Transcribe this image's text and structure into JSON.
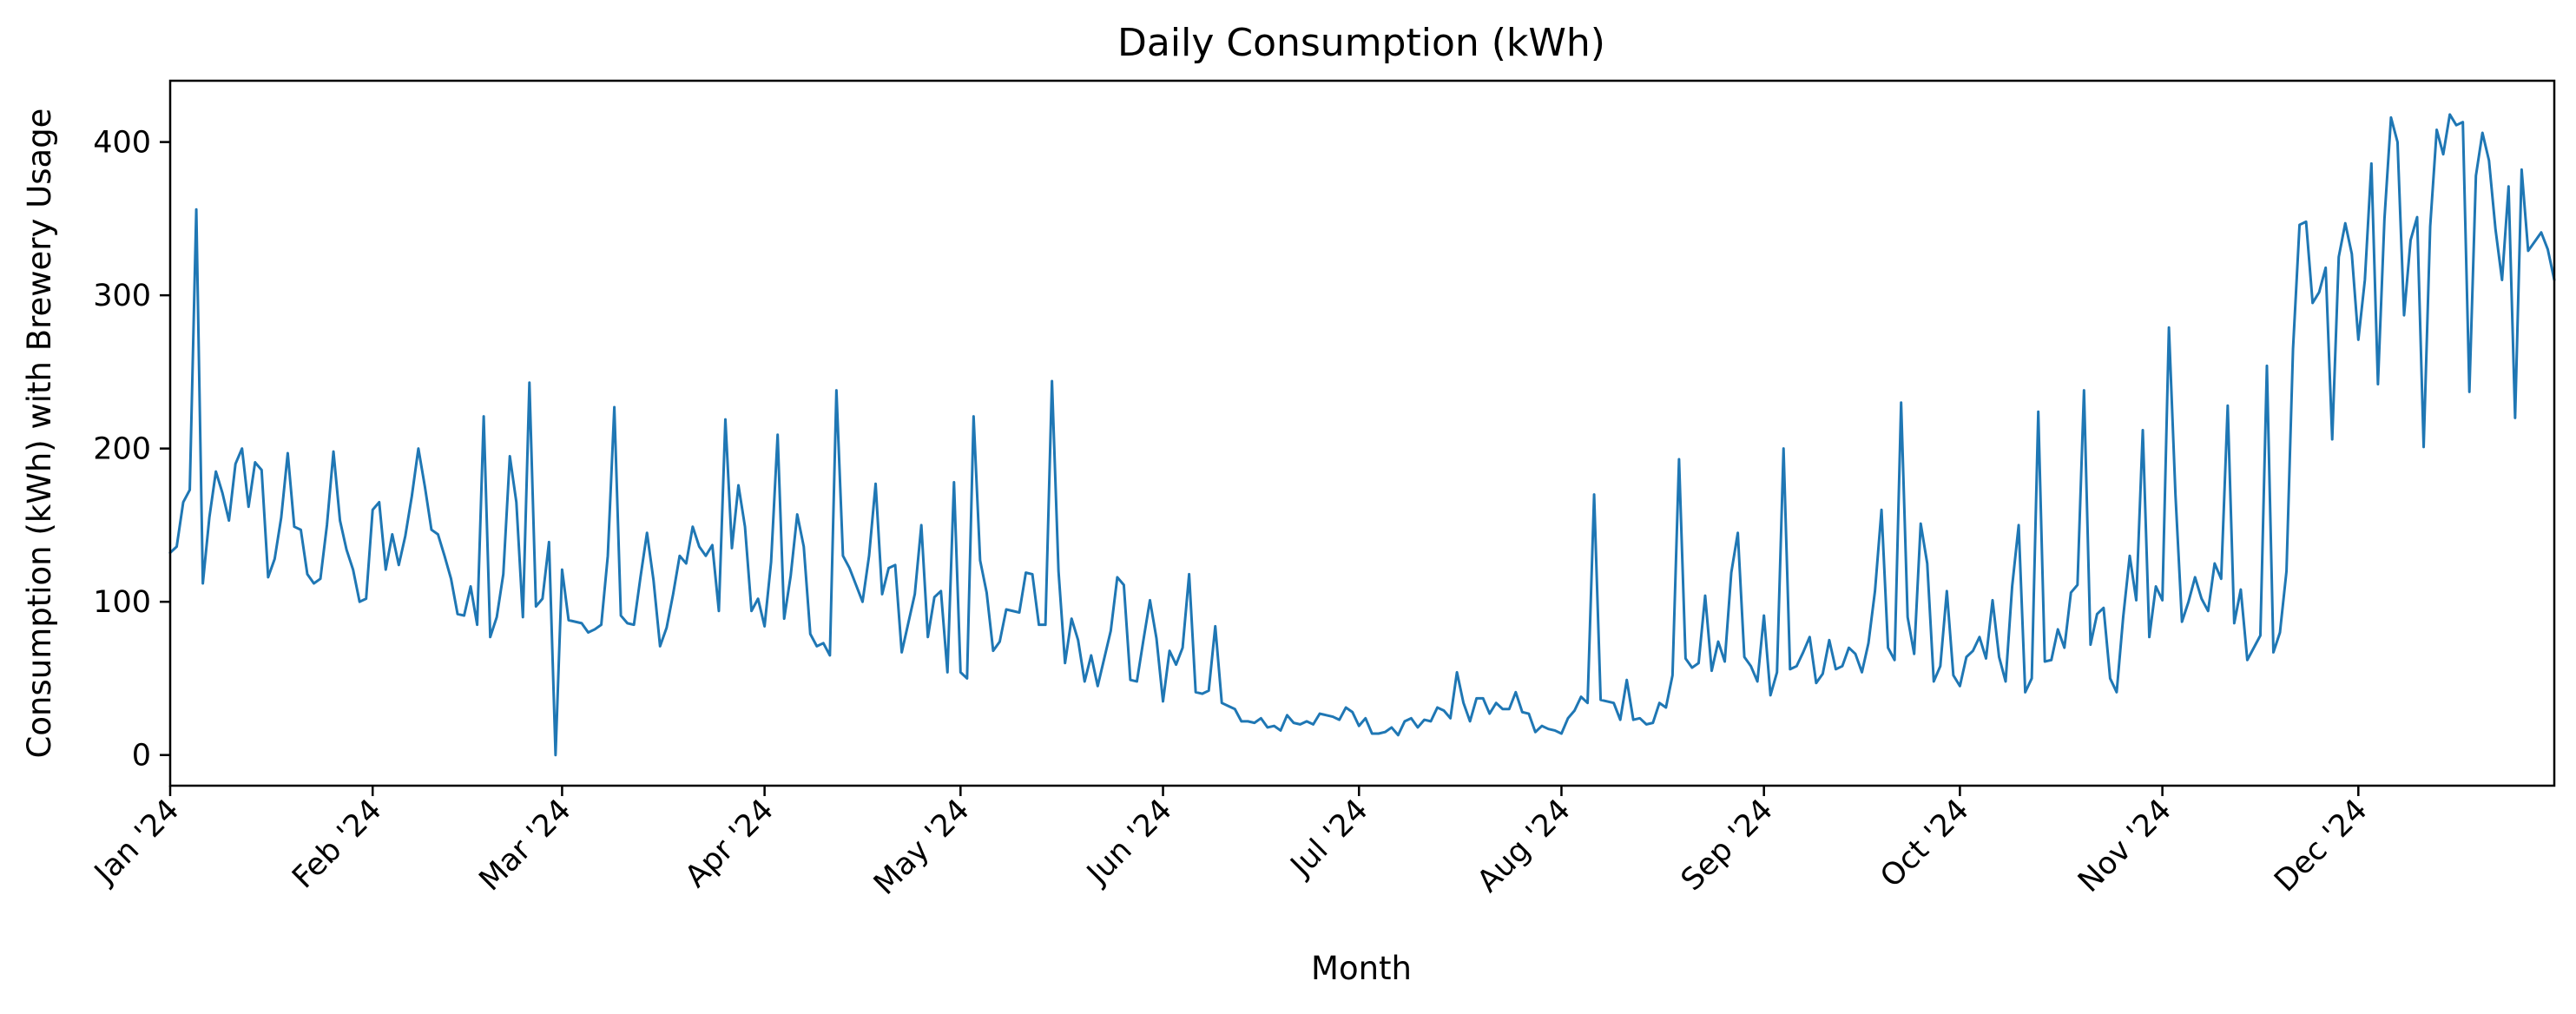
{
  "chart_data": {
    "type": "line",
    "title": "Daily Consumption (kWh)",
    "xlabel": "Month",
    "ylabel": "Consumption (kWh) with Brewery Usage",
    "xlim": [
      "2024-01-01",
      "2024-12-31"
    ],
    "ylim": [
      -20,
      440
    ],
    "yticks": [
      0,
      100,
      200,
      300,
      400
    ],
    "xticks": [
      {
        "date": "2024-01-01",
        "label": "Jan '24"
      },
      {
        "date": "2024-02-01",
        "label": "Feb '24"
      },
      {
        "date": "2024-03-01",
        "label": "Mar '24"
      },
      {
        "date": "2024-04-01",
        "label": "Apr '24"
      },
      {
        "date": "2024-05-01",
        "label": "May '24"
      },
      {
        "date": "2024-06-01",
        "label": "Jun '24"
      },
      {
        "date": "2024-07-01",
        "label": "Jul '24"
      },
      {
        "date": "2024-08-01",
        "label": "Aug '24"
      },
      {
        "date": "2024-09-01",
        "label": "Sep '24"
      },
      {
        "date": "2024-10-01",
        "label": "Oct '24"
      },
      {
        "date": "2024-11-01",
        "label": "Nov '24"
      },
      {
        "date": "2024-12-01",
        "label": "Dec '24"
      }
    ],
    "grid": false,
    "series": [
      {
        "color": "#1f77b4",
        "start_date": "2024-01-01",
        "values": [
          132,
          136,
          165,
          173,
          356,
          112,
          155,
          185,
          171,
          153,
          190,
          200,
          162,
          191,
          186,
          116,
          128,
          155,
          197,
          149,
          147,
          118,
          112,
          115,
          150,
          198,
          153,
          134,
          121,
          100,
          102,
          160,
          165,
          121,
          144,
          124,
          143,
          169,
          200,
          175,
          147,
          144,
          130,
          115,
          92,
          91,
          110,
          85,
          221,
          77,
          90,
          118,
          195,
          165,
          90,
          243,
          97,
          102,
          139,
          0,
          121,
          88,
          87,
          86,
          80,
          82,
          85,
          130,
          227,
          91,
          86,
          85,
          116,
          145,
          114,
          71,
          83,
          105,
          130,
          125,
          149,
          136,
          130,
          137,
          94,
          219,
          135,
          176,
          149,
          94,
          102,
          84,
          126,
          209,
          89,
          117,
          157,
          136,
          79,
          71,
          73,
          65,
          238,
          130,
          122,
          111,
          100,
          130,
          177,
          105,
          122,
          124,
          67,
          86,
          105,
          150,
          77,
          103,
          107,
          54,
          178,
          54,
          50,
          221,
          127,
          106,
          68,
          74,
          95,
          94,
          93,
          119,
          118,
          85,
          85,
          244,
          120,
          60,
          89,
          75,
          48,
          65,
          45,
          63,
          81,
          116,
          111,
          49,
          48,
          75,
          101,
          76,
          35,
          68,
          59,
          70,
          118,
          41,
          40,
          42,
          84,
          34,
          32,
          30,
          22,
          22,
          21,
          24,
          18,
          19,
          16,
          26,
          21,
          20,
          22,
          20,
          27,
          26,
          25,
          23,
          31,
          28,
          19,
          24,
          14,
          14,
          15,
          18,
          13,
          22,
          24,
          18,
          23,
          22,
          31,
          29,
          24,
          54,
          34,
          22,
          37,
          37,
          27,
          34,
          30,
          30,
          41,
          28,
          27,
          15,
          19,
          17,
          16,
          14,
          24,
          29,
          38,
          34,
          170,
          36,
          35,
          34,
          23,
          49,
          23,
          24,
          20,
          21,
          34,
          31,
          52,
          193,
          63,
          57,
          60,
          104,
          55,
          74,
          61,
          119,
          145,
          64,
          58,
          48,
          91,
          39,
          54,
          200,
          56,
          58,
          67,
          77,
          47,
          53,
          75,
          56,
          58,
          70,
          66,
          54,
          73,
          107,
          160,
          70,
          62,
          230,
          90,
          66,
          151,
          125,
          48,
          58,
          107,
          52,
          45,
          64,
          68,
          77,
          63,
          101,
          64,
          48,
          110,
          150,
          41,
          50,
          224,
          61,
          62,
          82,
          70,
          106,
          111,
          238,
          72,
          92,
          96,
          50,
          41,
          90,
          130,
          101,
          212,
          77,
          110,
          101,
          279,
          170,
          87,
          100,
          116,
          102,
          94,
          125,
          115,
          228,
          86,
          108,
          62,
          70,
          78,
          254,
          67,
          80,
          120,
          265,
          346,
          348,
          295,
          302,
          318,
          206,
          325,
          347,
          327,
          271,
          310,
          386,
          242,
          350,
          416,
          400,
          287,
          336,
          351,
          201,
          345,
          408,
          392,
          418,
          411,
          413,
          237,
          378,
          406,
          388,
          343,
          310,
          371,
          220,
          382,
          329,
          335,
          341,
          330,
          310
        ]
      }
    ]
  }
}
